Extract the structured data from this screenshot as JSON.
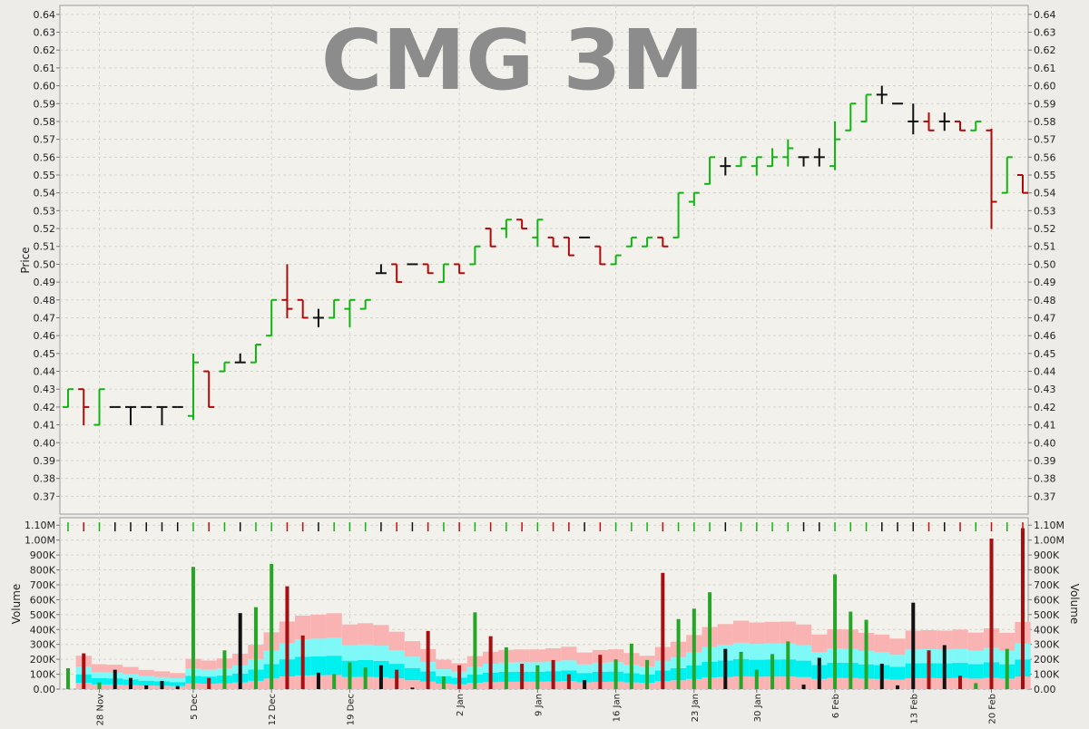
{
  "chart_data": [
    {
      "type": "ohlc",
      "title": "CMG 3M",
      "ylabel": "Price",
      "ylim": [
        0.36,
        0.645
      ],
      "y_ticks": [
        0.37,
        0.38,
        0.39,
        0.4,
        0.41,
        0.42,
        0.43,
        0.44,
        0.45,
        0.46,
        0.47,
        0.48,
        0.49,
        0.5,
        0.51,
        0.52,
        0.53,
        0.54,
        0.55,
        0.56,
        0.57,
        0.58,
        0.59,
        0.6,
        0.61,
        0.62,
        0.63,
        0.64
      ],
      "y_tick_labels": [
        "0.37",
        "0.38",
        "0.39",
        "0.40",
        "0.41",
        "0.42",
        "0.43",
        "0.44",
        "0.45",
        "0.46",
        "0.47",
        "0.48",
        "0.49",
        "0.50",
        "0.51",
        "0.52",
        "0.53",
        "0.54",
        "0.55",
        "0.56",
        "0.57",
        "0.58",
        "0.59",
        "0.60",
        "0.61",
        "0.62",
        "0.63",
        "0.64"
      ],
      "grid": true,
      "bars": [
        {
          "o": 0.42,
          "h": 0.43,
          "l": 0.42,
          "c": 0.43
        },
        {
          "o": 0.43,
          "h": 0.43,
          "l": 0.41,
          "c": 0.42
        },
        {
          "o": 0.41,
          "h": 0.43,
          "l": 0.41,
          "c": 0.43
        },
        {
          "o": 0.42,
          "h": 0.42,
          "l": 0.42,
          "c": 0.42
        },
        {
          "o": 0.42,
          "h": 0.42,
          "l": 0.41,
          "c": 0.42
        },
        {
          "o": 0.42,
          "h": 0.42,
          "l": 0.42,
          "c": 0.42
        },
        {
          "o": 0.42,
          "h": 0.42,
          "l": 0.41,
          "c": 0.42
        },
        {
          "o": 0.42,
          "h": 0.42,
          "l": 0.42,
          "c": 0.42
        },
        {
          "o": 0.415,
          "h": 0.45,
          "l": 0.413,
          "c": 0.445
        },
        {
          "o": 0.44,
          "h": 0.44,
          "l": 0.42,
          "c": 0.42
        },
        {
          "o": 0.44,
          "h": 0.445,
          "l": 0.44,
          "c": 0.445
        },
        {
          "o": 0.445,
          "h": 0.45,
          "l": 0.445,
          "c": 0.445
        },
        {
          "o": 0.445,
          "h": 0.455,
          "l": 0.445,
          "c": 0.455
        },
        {
          "o": 0.46,
          "h": 0.48,
          "l": 0.46,
          "c": 0.48
        },
        {
          "o": 0.48,
          "h": 0.5,
          "l": 0.47,
          "c": 0.475
        },
        {
          "o": 0.48,
          "h": 0.48,
          "l": 0.47,
          "c": 0.47
        },
        {
          "o": 0.47,
          "h": 0.475,
          "l": 0.465,
          "c": 0.47
        },
        {
          "o": 0.47,
          "h": 0.48,
          "l": 0.47,
          "c": 0.48
        },
        {
          "o": 0.475,
          "h": 0.48,
          "l": 0.465,
          "c": 0.48
        },
        {
          "o": 0.475,
          "h": 0.48,
          "l": 0.475,
          "c": 0.48
        },
        {
          "o": 0.495,
          "h": 0.5,
          "l": 0.495,
          "c": 0.495
        },
        {
          "o": 0.5,
          "h": 0.5,
          "l": 0.49,
          "c": 0.49
        },
        {
          "o": 0.5,
          "h": 0.5,
          "l": 0.5,
          "c": 0.5
        },
        {
          "o": 0.5,
          "h": 0.5,
          "l": 0.495,
          "c": 0.495
        },
        {
          "o": 0.49,
          "h": 0.5,
          "l": 0.49,
          "c": 0.5
        },
        {
          "o": 0.5,
          "h": 0.5,
          "l": 0.495,
          "c": 0.495
        },
        {
          "o": 0.5,
          "h": 0.51,
          "l": 0.5,
          "c": 0.51
        },
        {
          "o": 0.52,
          "h": 0.52,
          "l": 0.51,
          "c": 0.51
        },
        {
          "o": 0.52,
          "h": 0.525,
          "l": 0.515,
          "c": 0.525
        },
        {
          "o": 0.525,
          "h": 0.525,
          "l": 0.52,
          "c": 0.52
        },
        {
          "o": 0.515,
          "h": 0.525,
          "l": 0.51,
          "c": 0.525
        },
        {
          "o": 0.515,
          "h": 0.515,
          "l": 0.51,
          "c": 0.51
        },
        {
          "o": 0.515,
          "h": 0.515,
          "l": 0.505,
          "c": 0.505
        },
        {
          "o": 0.515,
          "h": 0.515,
          "l": 0.515,
          "c": 0.515
        },
        {
          "o": 0.51,
          "h": 0.51,
          "l": 0.5,
          "c": 0.5
        },
        {
          "o": 0.5,
          "h": 0.505,
          "l": 0.5,
          "c": 0.505
        },
        {
          "o": 0.51,
          "h": 0.515,
          "l": 0.51,
          "c": 0.515
        },
        {
          "o": 0.51,
          "h": 0.515,
          "l": 0.51,
          "c": 0.515
        },
        {
          "o": 0.515,
          "h": 0.515,
          "l": 0.51,
          "c": 0.51
        },
        {
          "o": 0.515,
          "h": 0.54,
          "l": 0.515,
          "c": 0.54
        },
        {
          "o": 0.535,
          "h": 0.54,
          "l": 0.533,
          "c": 0.54
        },
        {
          "o": 0.545,
          "h": 0.56,
          "l": 0.545,
          "c": 0.56
        },
        {
          "o": 0.555,
          "h": 0.56,
          "l": 0.55,
          "c": 0.555
        },
        {
          "o": 0.555,
          "h": 0.56,
          "l": 0.555,
          "c": 0.56
        },
        {
          "o": 0.555,
          "h": 0.56,
          "l": 0.55,
          "c": 0.56
        },
        {
          "o": 0.555,
          "h": 0.565,
          "l": 0.555,
          "c": 0.56
        },
        {
          "o": 0.56,
          "h": 0.57,
          "l": 0.555,
          "c": 0.565
        },
        {
          "o": 0.56,
          "h": 0.56,
          "l": 0.555,
          "c": 0.56
        },
        {
          "o": 0.56,
          "h": 0.565,
          "l": 0.555,
          "c": 0.56
        },
        {
          "o": 0.555,
          "h": 0.58,
          "l": 0.553,
          "c": 0.57
        },
        {
          "o": 0.575,
          "h": 0.59,
          "l": 0.575,
          "c": 0.59
        },
        {
          "o": 0.58,
          "h": 0.595,
          "l": 0.58,
          "c": 0.595
        },
        {
          "o": 0.595,
          "h": 0.6,
          "l": 0.59,
          "c": 0.595
        },
        {
          "o": 0.59,
          "h": 0.59,
          "l": 0.59,
          "c": 0.59
        },
        {
          "o": 0.58,
          "h": 0.59,
          "l": 0.573,
          "c": 0.58
        },
        {
          "o": 0.58,
          "h": 0.585,
          "l": 0.575,
          "c": 0.575
        },
        {
          "o": 0.58,
          "h": 0.585,
          "l": 0.575,
          "c": 0.58
        },
        {
          "o": 0.58,
          "h": 0.58,
          "l": 0.575,
          "c": 0.575
        },
        {
          "o": 0.575,
          "h": 0.58,
          "l": 0.575,
          "c": 0.58
        },
        {
          "o": 0.575,
          "h": 0.576,
          "l": 0.52,
          "c": 0.535
        },
        {
          "o": 0.54,
          "h": 0.56,
          "l": 0.54,
          "c": 0.56
        },
        {
          "o": 0.55,
          "h": 0.55,
          "l": 0.54,
          "c": 0.54
        }
      ]
    },
    {
      "type": "bar",
      "ylabel": "Volume",
      "ylim": [
        0,
        1150000
      ],
      "y_ticks": [
        0,
        100000,
        200000,
        300000,
        400000,
        500000,
        600000,
        700000,
        800000,
        900000,
        1000000,
        1100000
      ],
      "y_tick_labels": [
        "0.00",
        "100K",
        "200K",
        "300K",
        "400K",
        "500K",
        "600K",
        "700K",
        "800K",
        "900K",
        "1.00M",
        "1.10M"
      ],
      "grid": true,
      "values": [
        140000,
        240000,
        45000,
        130000,
        75000,
        25000,
        55000,
        20000,
        820000,
        75000,
        260000,
        510000,
        550000,
        840000,
        690000,
        360000,
        110000,
        100000,
        180000,
        145000,
        160000,
        130000,
        10000,
        390000,
        85000,
        160000,
        515000,
        355000,
        280000,
        170000,
        160000,
        195000,
        100000,
        60000,
        230000,
        200000,
        305000,
        195000,
        780000,
        470000,
        540000,
        650000,
        270000,
        250000,
        130000,
        235000,
        320000,
        30000,
        210000,
        770000,
        520000,
        465000,
        170000,
        25000,
        580000,
        260000,
        295000,
        90000,
        40000,
        1010000,
        270000,
        1080000
      ],
      "x_tick_labels": [
        "28 Nov",
        "5 Dec",
        "12 Dec",
        "19 Dec",
        "2 Jan",
        "9 Jan",
        "16 Jan",
        "23 Jan",
        "30 Jan",
        "6 Feb",
        "13 Feb",
        "20 Feb"
      ],
      "x_tick_bar_index": [
        2,
        8,
        13,
        18,
        25,
        30,
        35,
        40,
        44,
        49,
        54,
        59
      ]
    }
  ]
}
